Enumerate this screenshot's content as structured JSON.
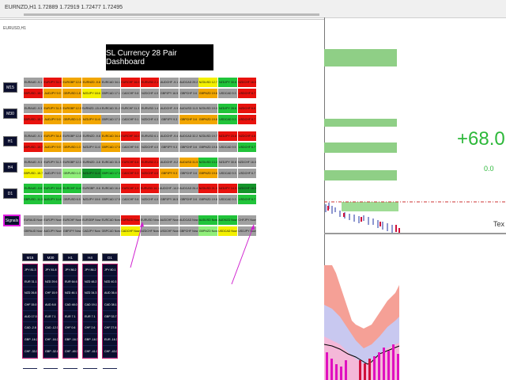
{
  "window": {
    "title": "EURNZD,H1  1.72889 1.72919 1.72477 1.72495",
    "chart_tab": "EURUSD,H1"
  },
  "dashboard": {
    "title": "SL Currency 28 Pair Dashboard",
    "timeframes": [
      "M15",
      "M30",
      "H1",
      "H4",
      "D1"
    ],
    "signals_label": "Signals",
    "rows": [
      {
        "tf": "M15",
        "top": [
          [
            "EURAUD -9.1",
            "gray"
          ],
          [
            "EURJPY 31.9",
            "red"
          ],
          [
            "EURGBP 12.8",
            "orange"
          ],
          [
            "EURNZD -9.8",
            "orange"
          ],
          [
            "EURCAD 34.1",
            "gray"
          ],
          [
            "EURCHF 16.0",
            "red"
          ],
          [
            "EURUSD 2.1",
            "red"
          ],
          [
            "AUDCHF -9.1",
            "gray"
          ],
          [
            "AUDCAD 29.2",
            "gray"
          ],
          [
            "NZDUSD 12.7",
            "yellow"
          ],
          [
            "NZDJPY 30.6",
            "green"
          ],
          [
            "NZDCHF 16.0",
            "red"
          ]
        ],
        "bot": [
          [
            "GBPUSD -15.7",
            "red"
          ],
          [
            "AUDJPY 9.9",
            "orange"
          ],
          [
            "GBPUSD 1.8",
            "orange"
          ],
          [
            "NZDJPY 18.6",
            "yellow"
          ],
          [
            "GBPCAD 17.1",
            "gray"
          ],
          [
            "CADCHF 9.8",
            "gray"
          ],
          [
            "NZDCHF 4.0",
            "gray"
          ],
          [
            "GBPJPY 16.5",
            "gray"
          ],
          [
            "GBPCHF 3.6",
            "gray"
          ],
          [
            "GBPNZD 19.6",
            "orange"
          ],
          [
            "USDCAD 9.3",
            "gray"
          ],
          [
            "USDCHF 6.7",
            "red"
          ]
        ]
      },
      {
        "tf": "M30",
        "top": [
          [
            "EURAUD -9.3",
            "gray"
          ],
          [
            "EURJPY 31.3",
            "orange"
          ],
          [
            "EURGBP 12.3",
            "orange"
          ],
          [
            "EURNZD -15.4",
            "gray"
          ],
          [
            "EURCAD 31.2",
            "gray"
          ],
          [
            "EURCHF 11.3",
            "gray"
          ],
          [
            "EURUSD 1.4",
            "gray"
          ],
          [
            "AUDCHF -9.9",
            "gray"
          ],
          [
            "AUDUSD 11.5",
            "gray"
          ],
          [
            "NZDUSD 19.0",
            "gray"
          ],
          [
            "NZDJPY 28.6",
            "green"
          ],
          [
            "NZDCHF 6.6",
            "red"
          ]
        ],
        "bot": [
          [
            "GBPUSD -15.7",
            "red"
          ],
          [
            "AUDJPY 9.9",
            "orange"
          ],
          [
            "GBPUSD 1.0",
            "orange"
          ],
          [
            "NZDJPY 11.6",
            "orange"
          ],
          [
            "GBPCAD 17.3",
            "gray"
          ],
          [
            "CADCHF 9.1",
            "gray"
          ],
          [
            "NZDCHF 4.3",
            "gray"
          ],
          [
            "GBPJPY 9.3",
            "gray"
          ],
          [
            "GBPCHF 3.6",
            "orange"
          ],
          [
            "GBPNZD 19.6",
            "orange"
          ],
          [
            "USDCAD 9.3",
            "green"
          ],
          [
            "USDCHF 6.7",
            "red"
          ]
        ]
      },
      {
        "tf": "H1",
        "top": [
          [
            "EURAUD -9.1",
            "gray"
          ],
          [
            "EURJPY 34.4",
            "orange"
          ],
          [
            "EURGBP 12.8",
            "gray"
          ],
          [
            "EURNZD -9.8",
            "gray"
          ],
          [
            "EURCAD 34.4",
            "orange"
          ],
          [
            "EURCHF 16.0",
            "red"
          ],
          [
            "EURUSD 6.1",
            "gray"
          ],
          [
            "AUDCHF -9.4",
            "gray"
          ],
          [
            "AUDCAD 32.2",
            "gray"
          ],
          [
            "NZDUSD 19.7",
            "gray"
          ],
          [
            "NZDJPY 23.8",
            "red"
          ],
          [
            "NZDCHF 4.8",
            "red"
          ]
        ],
        "bot": [
          [
            "GBPUSD -15.7",
            "red"
          ],
          [
            "AUDJPY 9.9",
            "orange"
          ],
          [
            "GBPUSD 1.0",
            "orange"
          ],
          [
            "NZDJPY 11.6",
            "gray"
          ],
          [
            "GBPCAD 17.5",
            "orange"
          ],
          [
            "CADCHF 9.6",
            "gray"
          ],
          [
            "NZDCHF 4.0",
            "gray"
          ],
          [
            "GBPJPY 9.3",
            "gray"
          ],
          [
            "GBPCHF 3.6",
            "gray"
          ],
          [
            "GBPNZD 19.6",
            "gray"
          ],
          [
            "USDCAD 9.5",
            "gray"
          ],
          [
            "USDCHF 6.7",
            "green"
          ]
        ]
      },
      {
        "tf": "H4",
        "top": [
          [
            "EURAUD -9.3",
            "gray"
          ],
          [
            "EURJPY 31.3",
            "gray"
          ],
          [
            "EURGBP 12.3",
            "gray"
          ],
          [
            "EURNZD -3.8",
            "gray"
          ],
          [
            "EURCAD 31.5",
            "gray"
          ],
          [
            "EURCHF 6.6",
            "red"
          ],
          [
            "EURUSD 2.1",
            "red"
          ],
          [
            "AUDCHF -9.2",
            "gray"
          ],
          [
            "AUDUSD 31.5",
            "orange"
          ],
          [
            "NZDUSD 13.2",
            "green"
          ],
          [
            "NZDJPY 30.6",
            "gray"
          ],
          [
            "NZDCHF 16.0",
            "gray"
          ]
        ],
        "bot": [
          [
            "GBPUSD -15.7",
            "yellow"
          ],
          [
            "AUDJPY 9.9",
            "gray"
          ],
          [
            "GBPUSD 1.0",
            "lgreen"
          ],
          [
            "NZDJPY 11.6",
            "dgreen"
          ],
          [
            "GBPCAD 17.3",
            "green"
          ],
          [
            "CADCHF 9.3",
            "red"
          ],
          [
            "NZDCHF 4.0",
            "red"
          ],
          [
            "GBPJPY 9.3",
            "orange"
          ],
          [
            "GBPCHF 3.6",
            "gray"
          ],
          [
            "GBPNZD 19.6",
            "orange"
          ],
          [
            "USDCAD 9.3",
            "gray"
          ],
          [
            "USDCHF 6.7",
            "gray"
          ]
        ]
      },
      {
        "tf": "D1",
        "top": [
          [
            "EURAUD -9.6",
            "green"
          ],
          [
            "EURJPY 16.6",
            "green"
          ],
          [
            "EURCHF 11.6",
            "green"
          ],
          [
            "EURGBP -9.6",
            "gray"
          ],
          [
            "EURCAD 16.4",
            "gray"
          ],
          [
            "EURCHF 1.9",
            "red"
          ],
          [
            "EURUSD 14.1",
            "red"
          ],
          [
            "AUDCHF -14.0",
            "gray"
          ],
          [
            "AUDCAD 26.4",
            "gray"
          ],
          [
            "NZDUSD 21.3",
            "red"
          ],
          [
            "NZDJPY 14.3",
            "red"
          ],
          [
            "NZDCHF 18.3",
            "dgreen"
          ]
        ],
        "bot": [
          [
            "GBPUSD -11.3",
            "green"
          ],
          [
            "AUDJPY 11.6",
            "green"
          ],
          [
            "GBPUSD 6.5",
            "gray"
          ],
          [
            "NZDJPY 18.6",
            "gray"
          ],
          [
            "GBPCAD 17.5",
            "gray"
          ],
          [
            "CADCHF 9.8",
            "gray"
          ],
          [
            "NZDCHF 4.0",
            "gray"
          ],
          [
            "GBPJPY 16.5",
            "gray"
          ],
          [
            "GBPCHF 3.6",
            "gray"
          ],
          [
            "GBPNZD 19.6",
            "gray"
          ],
          [
            "USDCAD 9.3",
            "gray"
          ],
          [
            "USDCHF 6.7",
            "green"
          ]
        ]
      }
    ],
    "signals": {
      "top": [
        [
          "EURAUD Now",
          "gray"
        ],
        [
          "EURJPY Now",
          "gray"
        ],
        [
          "EURCHF Now",
          "gray"
        ],
        [
          "EURGBP Now",
          "gray"
        ],
        [
          "EURCAD Now",
          "gray"
        ],
        [
          "EURNZD Now",
          "red"
        ],
        [
          "EURUSD Now",
          "gray"
        ],
        [
          "AUDCHF Now",
          "gray"
        ],
        [
          "AUDCAD Now",
          "gray"
        ],
        [
          "AUDUSD Now",
          "green"
        ],
        [
          "AUDNZD Now",
          "green"
        ],
        [
          "CHFJPY Now",
          "gray"
        ]
      ],
      "bot": [
        [
          "GBPAUD Now",
          "gray"
        ],
        [
          "AUDJPY Now",
          "gray"
        ],
        [
          "GBPJPY Now",
          "gray"
        ],
        [
          "CADJPY Now",
          "gray"
        ],
        [
          "GBPCAD Now",
          "gray"
        ],
        [
          "CADCHF Now",
          "yellow"
        ],
        [
          "NZDCHF Now",
          "gray"
        ],
        [
          "USDCHF Now",
          "gray"
        ],
        [
          "GBPCHF Now",
          "gray"
        ],
        [
          "GBPNZD Now",
          "lgreen"
        ],
        [
          "USDCAD Now",
          "yellow"
        ],
        [
          "USDJPY Now",
          "gray"
        ]
      ]
    }
  },
  "summary": {
    "headers": [
      "M15",
      "M30",
      "H1",
      "H4",
      "D1"
    ],
    "columns": [
      [
        "JPY 81.3",
        "EUR 31.1",
        "NZD 26.8",
        "CHF 15.0",
        "AUD 17.0",
        "CAD -2.8",
        "GBP -16.2",
        "CHF -33.3",
        "USD -84.4"
      ],
      [
        "JPY 81.8",
        "NZD 29.6",
        "CHF 15.9",
        "AUD 8.8",
        "EUR 7.1",
        "CAD -12.0",
        "CHF -16.2",
        "GBP -32.8",
        "USD -81.5"
      ],
      [
        "JPY 86.2",
        "EUR 64.6",
        "NZD 46.1",
        "CAD 48.0",
        "EUR 7.1",
        "CHF 0.6",
        "GBP -16.3",
        "CHF -49.3",
        "USD -68.3"
      ],
      [
        "JPY 86.2",
        "NZD 48.2",
        "NZD 34.3",
        "CAD 19.1",
        "EUR 7.1",
        "CHF 2.6",
        "GBP -18.3",
        "CHF -41.0",
        "USD -64.7"
      ],
      [
        "JPY 80.1",
        "NZD 40.3",
        "AUD 36.4",
        "CAD 38.1",
        "GBP 33.7",
        "CHF 27.8",
        "EUR -16.3",
        "CHF -43.0",
        "USD -46.7"
      ]
    ]
  },
  "indicator": {
    "big_value": "+68.0",
    "small_value": "0.0",
    "tex_label": "Tex"
  },
  "colors": {
    "gray": "#a0a0a0",
    "green": "#21c43a",
    "lgreen": "#90ee7a",
    "yellow": "#f3f000",
    "orange": "#f2a600",
    "red": "#e8120d",
    "dgreen": "#14952a",
    "navy": "#0b0f2e",
    "magenta": "#e020e0"
  }
}
